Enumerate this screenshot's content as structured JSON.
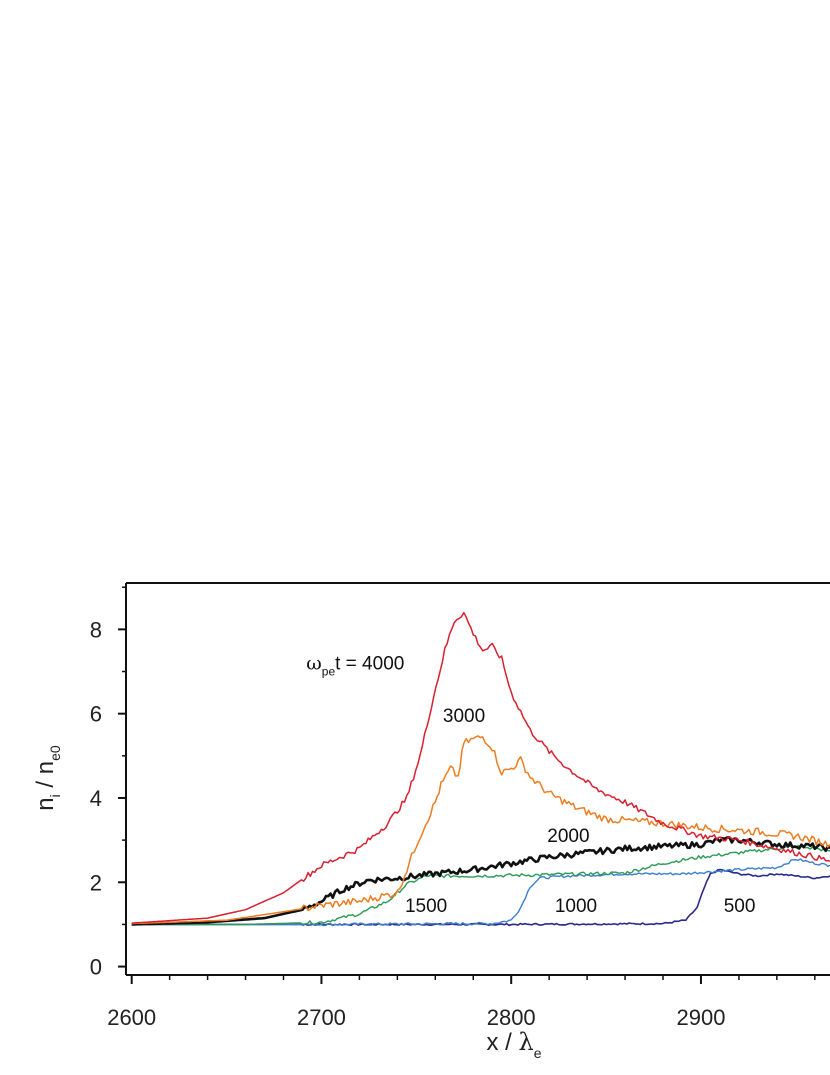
{
  "chart_data": {
    "type": "line",
    "xlabel": {
      "main": "x / ",
      "symbol": "λ",
      "sub": "e"
    },
    "ylabel": {
      "n": "n",
      "n_sub": "i",
      "slash": " / ",
      "d": "n",
      "d_sub": "e0"
    },
    "xlim": [
      2597,
      2968
    ],
    "ylim": [
      -0.2,
      9.1
    ],
    "x_ticks": [
      2600,
      2700,
      2800,
      2900
    ],
    "x_tick_labels": [
      "2600",
      "2700",
      "2800",
      "2900"
    ],
    "y_ticks": [
      0,
      2,
      4,
      6,
      8
    ],
    "y_tick_labels": [
      "0",
      "2",
      "4",
      "6",
      "8"
    ],
    "grid": false,
    "legend": "none",
    "series": [
      {
        "name": "500",
        "color": "#2a2a8c",
        "width": 1.6,
        "points": [
          [
            2600,
            1.0
          ],
          [
            2700,
            1.0
          ],
          [
            2800,
            1.0
          ],
          [
            2880,
            1.02
          ],
          [
            2892,
            1.1
          ],
          [
            2898,
            1.4
          ],
          [
            2902,
            1.9
          ],
          [
            2905,
            2.2
          ],
          [
            2910,
            2.3
          ],
          [
            2915,
            2.25
          ],
          [
            2920,
            2.2
          ],
          [
            2930,
            2.15
          ],
          [
            2940,
            2.2
          ],
          [
            2950,
            2.15
          ],
          [
            2960,
            2.1
          ],
          [
            2968,
            2.15
          ]
        ]
      },
      {
        "name": "1000",
        "color": "#3a7fd0",
        "width": 1.4,
        "points": [
          [
            2600,
            1.0
          ],
          [
            2700,
            1.0
          ],
          [
            2790,
            1.02
          ],
          [
            2800,
            1.1
          ],
          [
            2805,
            1.4
          ],
          [
            2810,
            1.9
          ],
          [
            2815,
            2.1
          ],
          [
            2830,
            2.15
          ],
          [
            2860,
            2.2
          ],
          [
            2890,
            2.2
          ],
          [
            2905,
            2.25
          ],
          [
            2920,
            2.3
          ],
          [
            2940,
            2.35
          ],
          [
            2950,
            2.55
          ],
          [
            2960,
            2.45
          ],
          [
            2968,
            2.4
          ]
        ]
      },
      {
        "name": "1500",
        "color": "#2a9a55",
        "width": 1.4,
        "points": [
          [
            2600,
            1.0
          ],
          [
            2660,
            1.0
          ],
          [
            2700,
            1.05
          ],
          [
            2720,
            1.25
          ],
          [
            2735,
            1.55
          ],
          [
            2745,
            1.95
          ],
          [
            2755,
            2.15
          ],
          [
            2780,
            2.15
          ],
          [
            2820,
            2.18
          ],
          [
            2860,
            2.22
          ],
          [
            2880,
            2.45
          ],
          [
            2900,
            2.6
          ],
          [
            2920,
            2.7
          ],
          [
            2940,
            2.8
          ],
          [
            2950,
            2.85
          ],
          [
            2960,
            2.8
          ],
          [
            2968,
            2.75
          ]
        ]
      },
      {
        "name": "2000",
        "color": "#111111",
        "width": 2.6,
        "points": [
          [
            2600,
            1.0
          ],
          [
            2640,
            1.05
          ],
          [
            2670,
            1.15
          ],
          [
            2690,
            1.35
          ],
          [
            2700,
            1.55
          ],
          [
            2712,
            1.85
          ],
          [
            2725,
            2.05
          ],
          [
            2740,
            2.1
          ],
          [
            2760,
            2.2
          ],
          [
            2780,
            2.3
          ],
          [
            2800,
            2.45
          ],
          [
            2820,
            2.6
          ],
          [
            2840,
            2.7
          ],
          [
            2860,
            2.8
          ],
          [
            2880,
            2.85
          ],
          [
            2900,
            2.9
          ],
          [
            2910,
            3.0
          ],
          [
            2920,
            3.0
          ],
          [
            2940,
            2.9
          ],
          [
            2960,
            2.85
          ],
          [
            2968,
            2.8
          ]
        ]
      },
      {
        "name": "3000",
        "color": "#ee7d22",
        "width": 1.5,
        "points": [
          [
            2600,
            1.02
          ],
          [
            2650,
            1.1
          ],
          [
            2680,
            1.3
          ],
          [
            2700,
            1.45
          ],
          [
            2720,
            1.55
          ],
          [
            2740,
            1.75
          ],
          [
            2745,
            2.3
          ],
          [
            2750,
            2.9
          ],
          [
            2755,
            3.4
          ],
          [
            2760,
            3.9
          ],
          [
            2763,
            4.3
          ],
          [
            2768,
            4.7
          ],
          [
            2772,
            4.5
          ],
          [
            2775,
            5.3
          ],
          [
            2780,
            5.4
          ],
          [
            2785,
            5.45
          ],
          [
            2790,
            5.2
          ],
          [
            2795,
            4.6
          ],
          [
            2800,
            4.7
          ],
          [
            2805,
            4.9
          ],
          [
            2810,
            4.5
          ],
          [
            2820,
            4.1
          ],
          [
            2835,
            3.75
          ],
          [
            2850,
            3.5
          ],
          [
            2880,
            3.4
          ],
          [
            2900,
            3.3
          ],
          [
            2930,
            3.2
          ],
          [
            2950,
            3.1
          ],
          [
            2968,
            2.9
          ]
        ]
      },
      {
        "name": "4000",
        "color": "#d92030",
        "width": 1.5,
        "points": [
          [
            2600,
            1.03
          ],
          [
            2640,
            1.15
          ],
          [
            2660,
            1.35
          ],
          [
            2680,
            1.75
          ],
          [
            2700,
            2.4
          ],
          [
            2720,
            2.8
          ],
          [
            2735,
            3.4
          ],
          [
            2745,
            4.0
          ],
          [
            2752,
            5.0
          ],
          [
            2758,
            6.2
          ],
          [
            2765,
            7.5
          ],
          [
            2770,
            8.2
          ],
          [
            2775,
            8.4
          ],
          [
            2780,
            7.9
          ],
          [
            2785,
            7.5
          ],
          [
            2790,
            7.6
          ],
          [
            2795,
            7.3
          ],
          [
            2800,
            6.5
          ],
          [
            2810,
            5.6
          ],
          [
            2820,
            5.1
          ],
          [
            2830,
            4.7
          ],
          [
            2845,
            4.2
          ],
          [
            2860,
            3.9
          ],
          [
            2880,
            3.4
          ],
          [
            2900,
            3.1
          ],
          [
            2920,
            3.0
          ],
          [
            2940,
            2.8
          ],
          [
            2960,
            2.6
          ],
          [
            2968,
            2.5
          ]
        ]
      }
    ],
    "labels": [
      {
        "text": "ωpet = 4000",
        "parts": {
          "omega": "ω",
          "sub": "pe",
          "rest": "t = 4000"
        },
        "x": 2692,
        "y": 7.05
      },
      {
        "text": "3000",
        "x": 2764,
        "y": 5.8
      },
      {
        "text": "2000",
        "x": 2819,
        "y": 2.95
      },
      {
        "text": "1500",
        "x": 2744,
        "y": 1.3
      },
      {
        "text": "1000",
        "x": 2823,
        "y": 1.3
      },
      {
        "text": "500",
        "x": 2912,
        "y": 1.3
      }
    ]
  }
}
